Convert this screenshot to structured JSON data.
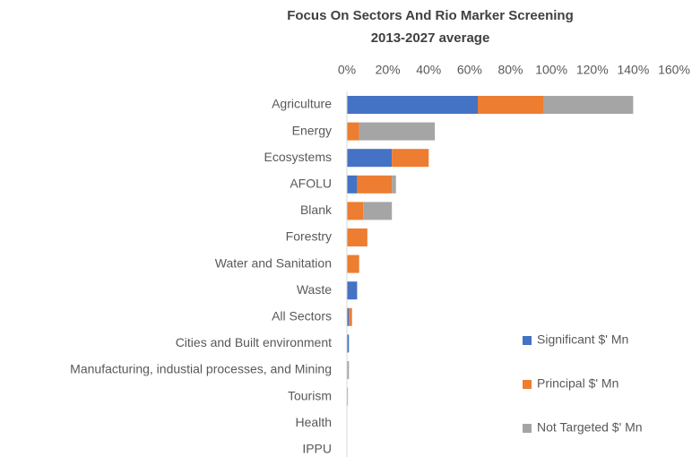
{
  "chart_data": {
    "type": "stacked-bar-horizontal",
    "title": "Focus On Sectors And Rio Marker Screening",
    "subtitle": "2013-2027 average",
    "categories": [
      "Agriculture",
      "Energy",
      "Ecosystems",
      "AFOLU",
      "Blank",
      "Forestry",
      "Water and Sanitation",
      "Waste",
      "All Sectors",
      "Cities and Built environment",
      "Manufacturing, industial processes, and Mining",
      "Tourism",
      "Health",
      "IPPU"
    ],
    "series": [
      {
        "name": "Significant $' Mn",
        "color": "#4472c4",
        "values": [
          64,
          0,
          22,
          5,
          0,
          0,
          0,
          5,
          1,
          1,
          0,
          0,
          0,
          0
        ]
      },
      {
        "name": "Principal $' Mn",
        "color": "#ed7d31",
        "values": [
          32,
          6,
          18,
          17,
          8,
          10,
          6,
          0,
          1.5,
          0,
          0,
          0,
          0,
          0
        ]
      },
      {
        "name": "Not Targeted $' Mn",
        "color": "#a5a5a5",
        "values": [
          44,
          37,
          0,
          2,
          14,
          0,
          0,
          0,
          0,
          0,
          1,
          0.5,
          0,
          0
        ]
      }
    ],
    "xlim": [
      0,
      160
    ],
    "xticks": [
      {
        "value": 0,
        "label": "0%"
      },
      {
        "value": 20,
        "label": "20%"
      },
      {
        "value": 40,
        "label": "40%"
      },
      {
        "value": 60,
        "label": "60%"
      },
      {
        "value": 80,
        "label": "80%"
      },
      {
        "value": 100,
        "label": "100%"
      },
      {
        "value": 120,
        "label": "120%"
      },
      {
        "value": 140,
        "label": "140%"
      },
      {
        "value": 160,
        "label": "160%"
      }
    ],
    "legend": "right"
  }
}
